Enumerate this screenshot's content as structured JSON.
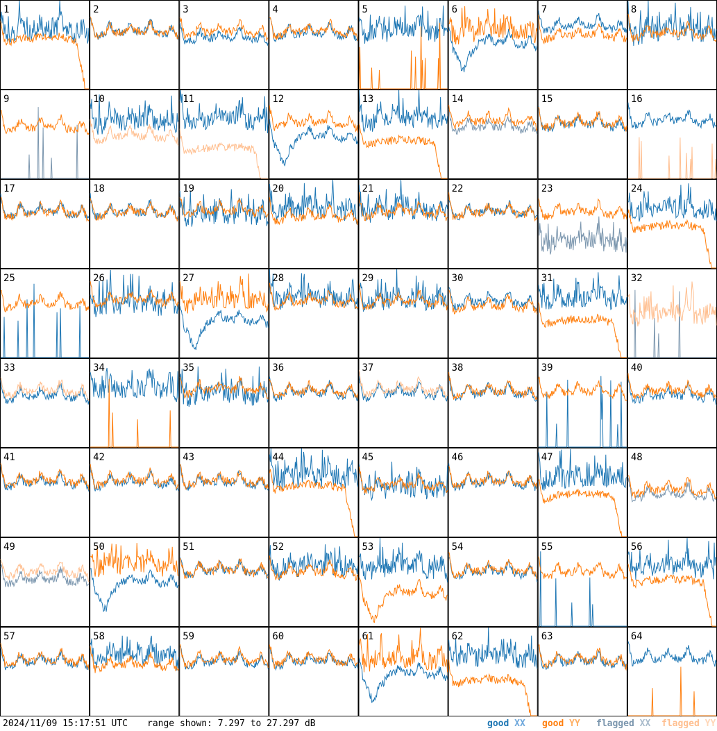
{
  "colors": {
    "good_xx": "#1f77b4",
    "good_yy": "#ff7f0e",
    "flagged_xx": "#7b96ae",
    "flagged_yy": "#ffbf90"
  },
  "footer": {
    "timestamp": "2024/11/09 15:17:51 UTC",
    "range_text": "range shown: 7.297 to 27.297 dB",
    "legend": {
      "good_xx": [
        "good",
        "XX"
      ],
      "good_yy": [
        "good",
        "YY"
      ],
      "flagged_xx": [
        "flagged",
        "XX"
      ],
      "flagged_yy": [
        "flagged",
        "YY"
      ]
    }
  },
  "chart_data": {
    "type": "line",
    "layout": "8x8 small multiples, one panel per antenna",
    "value_range_db": [
      7.297,
      27.297
    ],
    "series_names": [
      "good XX",
      "good YY",
      "flagged XX",
      "flagged YY"
    ],
    "panels": [
      {
        "id": "1",
        "xx": "good",
        "yy": "good",
        "xx_level": 0.62,
        "yy_level": 0.55,
        "xx_shape": "spiky",
        "yy_shape": "rolloff"
      },
      {
        "id": "2",
        "xx": "good",
        "yy": "good",
        "xx_level": 0.62,
        "yy_level": 0.62,
        "xx_shape": "normal",
        "yy_shape": "normal"
      },
      {
        "id": "3",
        "xx": "good",
        "yy": "good",
        "xx_level": 0.55,
        "yy_level": 0.62,
        "xx_shape": "normal",
        "yy_shape": "normal"
      },
      {
        "id": "4",
        "xx": "good",
        "yy": "good",
        "xx_level": 0.6,
        "yy_level": 0.62,
        "xx_shape": "normal",
        "yy_shape": "normal"
      },
      {
        "id": "5",
        "xx": "good",
        "yy": "good",
        "xx_level": 0.6,
        "yy_level": 0.0,
        "xx_shape": "spiky",
        "yy_shape": "sparse"
      },
      {
        "id": "6",
        "xx": "good",
        "yy": "good",
        "xx_level": 0.5,
        "yy_level": 0.6,
        "xx_shape": "dip",
        "yy_shape": "spiky"
      },
      {
        "id": "7",
        "xx": "good",
        "yy": "good",
        "xx_level": 0.68,
        "yy_level": 0.58,
        "xx_shape": "normal",
        "yy_shape": "normal"
      },
      {
        "id": "8",
        "xx": "good",
        "yy": "good",
        "xx_level": 0.6,
        "yy_level": 0.6,
        "xx_shape": "spiky",
        "yy_shape": "normal"
      },
      {
        "id": "9",
        "xx": "flagged",
        "yy": "good",
        "xx_level": 0.0,
        "yy_level": 0.55,
        "xx_shape": "sparse",
        "yy_shape": "normal"
      },
      {
        "id": "10",
        "xx": "good",
        "yy": "flagged",
        "xx_level": 0.6,
        "yy_level": 0.45,
        "xx_shape": "spiky",
        "yy_shape": "normal"
      },
      {
        "id": "11",
        "xx": "good",
        "yy": "flagged",
        "xx_level": 0.62,
        "yy_level": 0.32,
        "xx_shape": "spiky",
        "yy_shape": "rolloff"
      },
      {
        "id": "12",
        "xx": "good",
        "yy": "good",
        "xx_level": 0.45,
        "yy_level": 0.6,
        "xx_shape": "dip",
        "yy_shape": "normal"
      },
      {
        "id": "13",
        "xx": "good",
        "yy": "good",
        "xx_level": 0.62,
        "yy_level": 0.4,
        "xx_shape": "spiky",
        "yy_shape": "rolloff"
      },
      {
        "id": "14",
        "xx": "flagged",
        "yy": "good",
        "xx_level": 0.55,
        "yy_level": 0.62,
        "xx_shape": "normal",
        "yy_shape": "normal"
      },
      {
        "id": "15",
        "xx": "good",
        "yy": "good",
        "xx_level": 0.58,
        "yy_level": 0.6,
        "xx_shape": "normal",
        "yy_shape": "normal"
      },
      {
        "id": "16",
        "xx": "good",
        "yy": "flagged",
        "xx_level": 0.62,
        "yy_level": 0.0,
        "xx_shape": "normal",
        "yy_shape": "sparse"
      },
      {
        "id": "17",
        "xx": "good",
        "yy": "good",
        "xx_level": 0.6,
        "yy_level": 0.6,
        "xx_shape": "normal",
        "yy_shape": "normal"
      },
      {
        "id": "18",
        "xx": "good",
        "yy": "good",
        "xx_level": 0.6,
        "yy_level": 0.6,
        "xx_shape": "normal",
        "yy_shape": "normal"
      },
      {
        "id": "19",
        "xx": "good",
        "yy": "good",
        "xx_level": 0.55,
        "yy_level": 0.62,
        "xx_shape": "spiky",
        "yy_shape": "normal"
      },
      {
        "id": "20",
        "xx": "good",
        "yy": "good",
        "xx_level": 0.62,
        "yy_level": 0.55,
        "xx_shape": "spiky",
        "yy_shape": "normal"
      },
      {
        "id": "21",
        "xx": "good",
        "yy": "good",
        "xx_level": 0.6,
        "yy_level": 0.6,
        "xx_shape": "spiky",
        "yy_shape": "normal"
      },
      {
        "id": "22",
        "xx": "good",
        "yy": "good",
        "xx_level": 0.6,
        "yy_level": 0.6,
        "xx_shape": "normal",
        "yy_shape": "normal"
      },
      {
        "id": "23",
        "xx": "flagged",
        "yy": "good",
        "xx_level": 0.25,
        "yy_level": 0.6,
        "xx_shape": "spiky",
        "yy_shape": "normal"
      },
      {
        "id": "24",
        "xx": "good",
        "yy": "good",
        "xx_level": 0.6,
        "yy_level": 0.45,
        "xx_shape": "spiky",
        "yy_shape": "rolloff"
      },
      {
        "id": "25",
        "xx": "good",
        "yy": "good",
        "xx_level": 0.0,
        "yy_level": 0.58,
        "xx_shape": "sparse",
        "yy_shape": "normal"
      },
      {
        "id": "26",
        "xx": "good",
        "yy": "good",
        "xx_level": 0.55,
        "yy_level": 0.62,
        "xx_shape": "spiky",
        "yy_shape": "normal"
      },
      {
        "id": "27",
        "xx": "good",
        "yy": "good",
        "xx_level": 0.4,
        "yy_level": 0.6,
        "xx_shape": "dip",
        "yy_shape": "spiky"
      },
      {
        "id": "28",
        "xx": "good",
        "yy": "good",
        "xx_level": 0.62,
        "yy_level": 0.6,
        "xx_shape": "spiky",
        "yy_shape": "normal"
      },
      {
        "id": "29",
        "xx": "good",
        "yy": "good",
        "xx_level": 0.6,
        "yy_level": 0.6,
        "xx_shape": "spiky",
        "yy_shape": "normal"
      },
      {
        "id": "30",
        "xx": "good",
        "yy": "good",
        "xx_level": 0.6,
        "yy_level": 0.55,
        "xx_shape": "normal",
        "yy_shape": "normal"
      },
      {
        "id": "31",
        "xx": "good",
        "yy": "good",
        "xx_level": 0.62,
        "yy_level": 0.4,
        "xx_shape": "spiky",
        "yy_shape": "rolloff"
      },
      {
        "id": "32",
        "xx": "flagged",
        "yy": "flagged",
        "xx_level": 0.0,
        "yy_level": 0.45,
        "xx_shape": "sparse",
        "yy_shape": "spiky"
      },
      {
        "id": "33",
        "xx": "good",
        "yy": "flagged",
        "xx_level": 0.55,
        "yy_level": 0.6,
        "xx_shape": "normal",
        "yy_shape": "normal"
      },
      {
        "id": "34",
        "xx": "good",
        "yy": "good",
        "xx_level": 0.62,
        "yy_level": 0.0,
        "xx_shape": "spiky",
        "yy_shape": "sparse"
      },
      {
        "id": "35",
        "xx": "good",
        "yy": "good",
        "xx_level": 0.55,
        "yy_level": 0.62,
        "xx_shape": "spiky",
        "yy_shape": "normal"
      },
      {
        "id": "36",
        "xx": "good",
        "yy": "good",
        "xx_level": 0.58,
        "yy_level": 0.6,
        "xx_shape": "normal",
        "yy_shape": "normal"
      },
      {
        "id": "37",
        "xx": "good",
        "yy": "flagged",
        "xx_level": 0.58,
        "yy_level": 0.62,
        "xx_shape": "normal",
        "yy_shape": "normal"
      },
      {
        "id": "38",
        "xx": "good",
        "yy": "good",
        "xx_level": 0.58,
        "yy_level": 0.6,
        "xx_shape": "normal",
        "yy_shape": "normal"
      },
      {
        "id": "39",
        "xx": "good",
        "yy": "good",
        "xx_level": 0.0,
        "yy_level": 0.6,
        "xx_shape": "sparse",
        "yy_shape": "normal"
      },
      {
        "id": "40",
        "xx": "good",
        "yy": "good",
        "xx_level": 0.55,
        "yy_level": 0.6,
        "xx_shape": "normal",
        "yy_shape": "normal"
      },
      {
        "id": "41",
        "xx": "good",
        "yy": "good",
        "xx_level": 0.58,
        "yy_level": 0.6,
        "xx_shape": "normal",
        "yy_shape": "normal"
      },
      {
        "id": "42",
        "xx": "good",
        "yy": "good",
        "xx_level": 0.58,
        "yy_level": 0.6,
        "xx_shape": "normal",
        "yy_shape": "normal"
      },
      {
        "id": "43",
        "xx": "good",
        "yy": "good",
        "xx_level": 0.58,
        "yy_level": 0.6,
        "xx_shape": "normal",
        "yy_shape": "normal"
      },
      {
        "id": "44",
        "xx": "good",
        "yy": "good",
        "xx_level": 0.62,
        "yy_level": 0.55,
        "xx_shape": "spiky",
        "yy_shape": "rolloff"
      },
      {
        "id": "45",
        "xx": "good",
        "yy": "good",
        "xx_level": 0.5,
        "yy_level": 0.55,
        "xx_shape": "spiky",
        "yy_shape": "normal"
      },
      {
        "id": "46",
        "xx": "good",
        "yy": "good",
        "xx_level": 0.58,
        "yy_level": 0.6,
        "xx_shape": "normal",
        "yy_shape": "normal"
      },
      {
        "id": "47",
        "xx": "good",
        "yy": "good",
        "xx_level": 0.62,
        "yy_level": 0.45,
        "xx_shape": "spiky",
        "yy_shape": "rolloff"
      },
      {
        "id": "48",
        "xx": "flagged",
        "yy": "good",
        "xx_level": 0.45,
        "yy_level": 0.5,
        "xx_shape": "normal",
        "yy_shape": "normal"
      },
      {
        "id": "49",
        "xx": "flagged",
        "yy": "flagged",
        "xx_level": 0.5,
        "yy_level": 0.58,
        "xx_shape": "normal",
        "yy_shape": "normal"
      },
      {
        "id": "50",
        "xx": "good",
        "yy": "good",
        "xx_level": 0.48,
        "yy_level": 0.65,
        "xx_shape": "dip",
        "yy_shape": "spiky"
      },
      {
        "id": "51",
        "xx": "good",
        "yy": "good",
        "xx_level": 0.6,
        "yy_level": 0.6,
        "xx_shape": "normal",
        "yy_shape": "normal"
      },
      {
        "id": "52",
        "xx": "good",
        "yy": "good",
        "xx_level": 0.62,
        "yy_level": 0.58,
        "xx_shape": "spiky",
        "yy_shape": "normal"
      },
      {
        "id": "53",
        "xx": "good",
        "yy": "good",
        "xx_level": 0.62,
        "yy_level": 0.35,
        "xx_shape": "spiky",
        "yy_shape": "dip"
      },
      {
        "id": "54",
        "xx": "good",
        "yy": "good",
        "xx_level": 0.58,
        "yy_level": 0.6,
        "xx_shape": "normal",
        "yy_shape": "normal"
      },
      {
        "id": "55",
        "xx": "good",
        "yy": "good",
        "xx_level": 0.0,
        "yy_level": 0.58,
        "xx_shape": "sparse",
        "yy_shape": "normal"
      },
      {
        "id": "56",
        "xx": "good",
        "yy": "good",
        "xx_level": 0.62,
        "yy_level": 0.5,
        "xx_shape": "spiky",
        "yy_shape": "rolloff"
      },
      {
        "id": "57",
        "xx": "good",
        "yy": "good",
        "xx_level": 0.58,
        "yy_level": 0.6,
        "xx_shape": "normal",
        "yy_shape": "normal"
      },
      {
        "id": "58",
        "xx": "good",
        "yy": "good",
        "xx_level": 0.62,
        "yy_level": 0.55,
        "xx_shape": "spiky",
        "yy_shape": "normal"
      },
      {
        "id": "59",
        "xx": "good",
        "yy": "good",
        "xx_level": 0.58,
        "yy_level": 0.6,
        "xx_shape": "normal",
        "yy_shape": "normal"
      },
      {
        "id": "60",
        "xx": "good",
        "yy": "good",
        "xx_level": 0.58,
        "yy_level": 0.6,
        "xx_shape": "normal",
        "yy_shape": "normal"
      },
      {
        "id": "61",
        "xx": "good",
        "yy": "good",
        "xx_level": 0.45,
        "yy_level": 0.6,
        "xx_shape": "dip",
        "yy_shape": "spiky"
      },
      {
        "id": "62",
        "xx": "good",
        "yy": "good",
        "xx_level": 0.62,
        "yy_level": 0.38,
        "xx_shape": "spiky",
        "yy_shape": "rolloff"
      },
      {
        "id": "63",
        "xx": "good",
        "yy": "good",
        "xx_level": 0.58,
        "yy_level": 0.6,
        "xx_shape": "normal",
        "yy_shape": "normal"
      },
      {
        "id": "64",
        "xx": "good",
        "yy": "good",
        "xx_level": 0.62,
        "yy_level": 0.0,
        "xx_shape": "normal",
        "yy_shape": "sparse"
      }
    ]
  }
}
